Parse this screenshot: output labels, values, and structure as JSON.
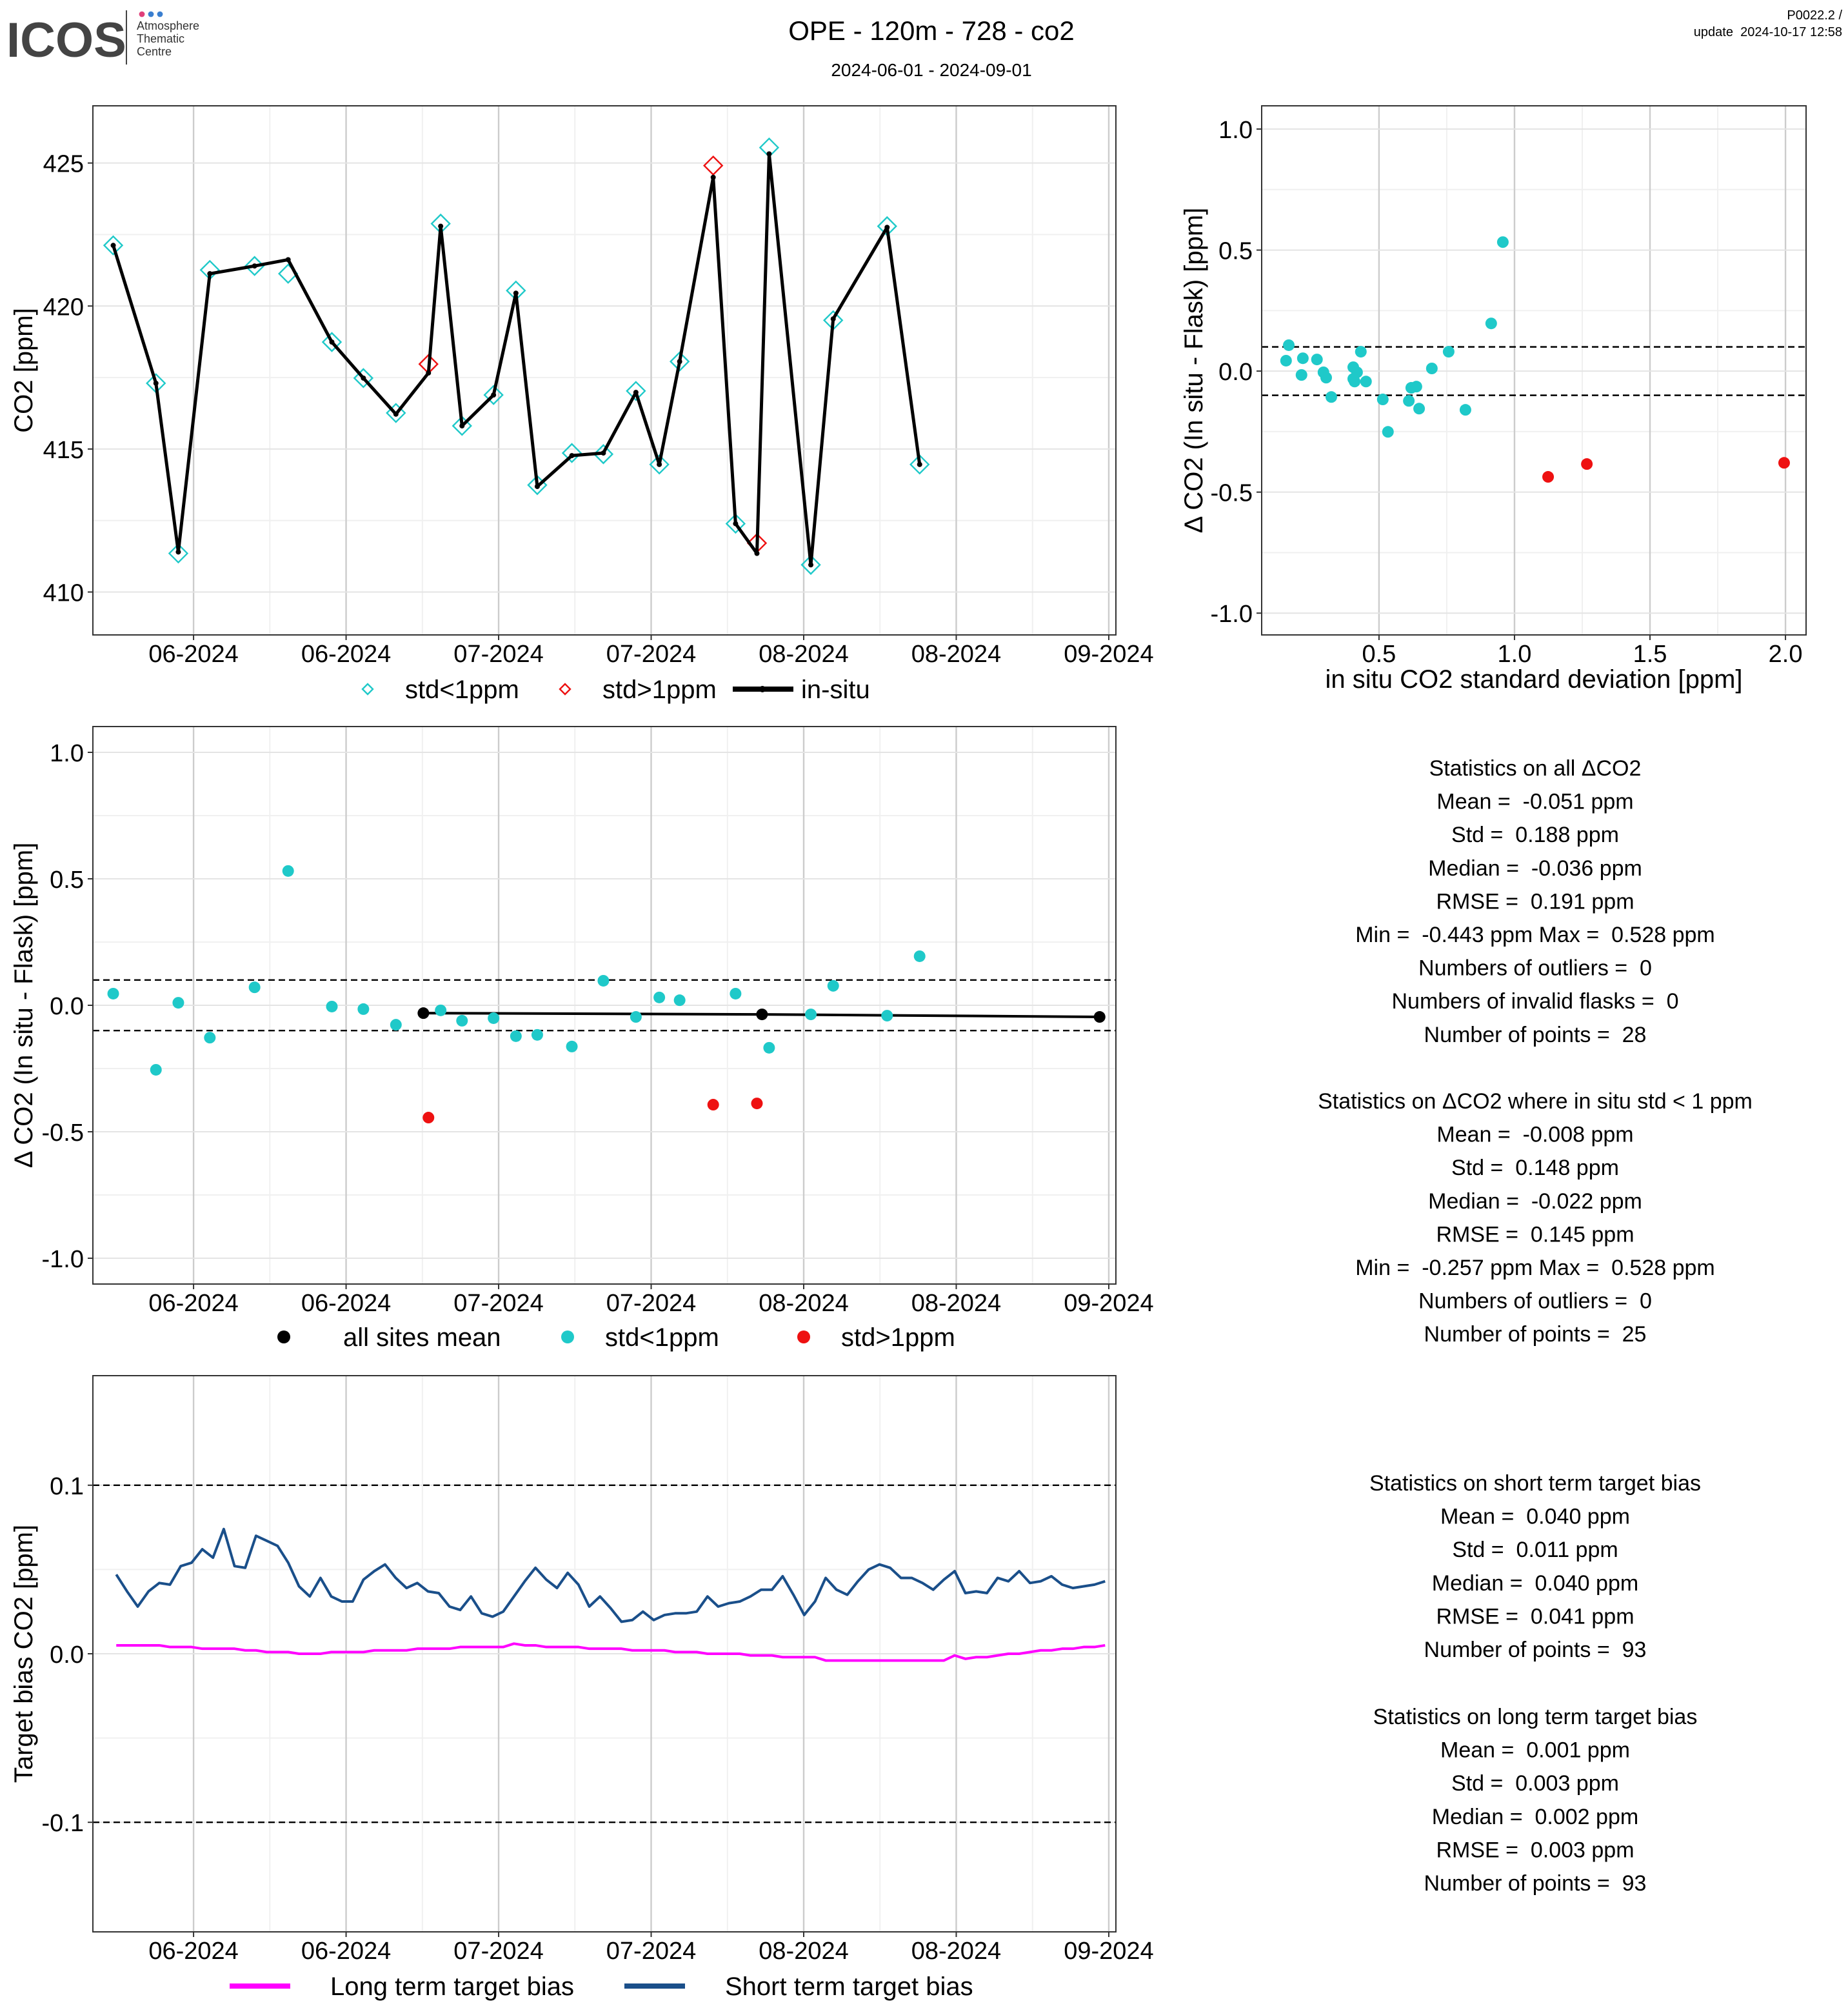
{
  "header": {
    "logo": "ICOS",
    "logo_sub": [
      "Atmosphere",
      "Thematic",
      "Centre"
    ],
    "title": "OPE - 120m - 728 - co2",
    "subtitle": "2024-06-01 - 2024-09-01",
    "version": "P0022.2 /",
    "update": "update  2024-10-17 12:58"
  },
  "chart_data": [
    {
      "type": "line",
      "ylabel": "CO2 [ppm]",
      "xlim": [
        -9.9,
        90.7
      ],
      "xticks": [
        {
          "value": 0,
          "label": "06-2024"
        },
        {
          "value": 15,
          "label": "06-2024"
        },
        {
          "value": 30,
          "label": "07-2024"
        },
        {
          "value": 45,
          "label": "07-2024"
        },
        {
          "value": 60,
          "label": "08-2024"
        },
        {
          "value": 75,
          "label": "08-2024"
        },
        {
          "value": 90,
          "label": "09-2024"
        }
      ],
      "ylim": [
        408.5,
        427
      ],
      "yticks": [
        410,
        415,
        420,
        425
      ],
      "grid": true,
      "series": [
        {
          "name": "std<1ppm",
          "color": "#1fc9c9",
          "style": "diamond",
          "x": [
            -7.9,
            -3.7,
            -1.5,
            1.6,
            6.0,
            9.3,
            13.6,
            16.7,
            19.9,
            24.3,
            26.4,
            29.5,
            31.7,
            33.8,
            37.2,
            40.3,
            43.5,
            45.8,
            47.8,
            53.3,
            56.6,
            60.7,
            62.9,
            68.2,
            71.4
          ],
          "values": [
            422.12,
            417.3,
            411.35,
            421.26,
            421.4,
            421.13,
            418.74,
            417.48,
            416.26,
            422.88,
            415.81,
            416.89,
            420.54,
            413.74,
            414.86,
            414.82,
            417.03,
            414.46,
            418.06,
            412.39,
            425.54,
            410.95,
            419.5,
            422.79,
            414.46
          ]
        },
        {
          "name": "std>1ppm",
          "color": "#ee1111",
          "style": "diamond",
          "x": [
            23.1,
            51.1,
            55.4
          ],
          "values": [
            417.97,
            424.91,
            411.71
          ]
        },
        {
          "name": "in-situ",
          "color": "#000000",
          "style": "line-dot",
          "x": [
            -7.9,
            -3.7,
            -1.5,
            1.6,
            6.0,
            9.3,
            13.6,
            16.7,
            19.9,
            23.1,
            24.3,
            26.4,
            29.5,
            31.7,
            33.8,
            37.2,
            40.3,
            43.5,
            45.8,
            47.8,
            51.1,
            53.3,
            55.4,
            56.6,
            60.7,
            62.9,
            68.2,
            71.4
          ],
          "values": [
            422.12,
            417.3,
            411.4,
            421.13,
            421.4,
            421.62,
            418.74,
            417.48,
            416.22,
            417.66,
            422.79,
            415.81,
            416.89,
            420.45,
            413.69,
            414.77,
            414.86,
            416.98,
            414.46,
            418.06,
            424.5,
            412.39,
            411.35,
            425.32,
            410.95,
            419.55,
            422.75,
            414.46
          ]
        }
      ]
    },
    {
      "type": "scatter",
      "xlabel": "in situ CO2 standard deviation [ppm]",
      "ylabel": "Δ CO2 (In situ - Flask) [ppm]",
      "xlim": [
        0.067,
        2.076
      ],
      "xticks": [
        0.5,
        {
          "value": 1,
          "label": "1.0"
        },
        1.5,
        {
          "value": 2,
          "label": "2.0"
        }
      ],
      "ylim": [
        -1.09,
        1.096
      ],
      "yticks": [
        {
          "value": -1,
          "label": "-1.0"
        },
        -0.5,
        {
          "value": 0,
          "label": "0.0"
        },
        0.5,
        {
          "value": 1,
          "label": "1.0"
        }
      ],
      "grid": true,
      "hlines": [
        0.1,
        -0.1
      ],
      "series": [
        {
          "color": "#1fc9c9",
          "style": "dot",
          "x": [
            0.157,
            0.167,
            0.214,
            0.219,
            0.271,
            0.295,
            0.305,
            0.324,
            0.405,
            0.405,
            0.41,
            0.419,
            0.433,
            0.452,
            0.514,
            0.533,
            0.61,
            0.619,
            0.638,
            0.648,
            0.695,
            0.757,
            0.819,
            0.914,
            0.957
          ],
          "values": [
            0.043,
            0.107,
            -0.016,
            0.053,
            0.048,
            -0.005,
            -0.027,
            -0.107,
            0.016,
            -0.032,
            -0.043,
            -0.005,
            0.08,
            -0.043,
            -0.117,
            -0.251,
            -0.123,
            -0.069,
            -0.064,
            -0.155,
            0.011,
            0.08,
            -0.16,
            0.197,
            0.533
          ]
        },
        {
          "color": "#ee1111",
          "style": "dot",
          "x": [
            1.124,
            1.267,
            1.995
          ],
          "values": [
            -0.437,
            -0.384,
            -0.379
          ]
        }
      ]
    },
    {
      "type": "scatter",
      "ylabel": "Δ CO2 (In situ - Flask) [ppm]",
      "xlim": [
        -9.9,
        90.7
      ],
      "xticks": [
        {
          "value": 0,
          "label": "06-2024"
        },
        {
          "value": 15,
          "label": "06-2024"
        },
        {
          "value": 30,
          "label": "07-2024"
        },
        {
          "value": 45,
          "label": "07-2024"
        },
        {
          "value": 60,
          "label": "08-2024"
        },
        {
          "value": 75,
          "label": "08-2024"
        },
        {
          "value": 90,
          "label": "09-2024"
        }
      ],
      "ylim": [
        -1.102,
        1.102
      ],
      "yticks": [
        {
          "value": -1,
          "label": "-1.0"
        },
        -0.5,
        {
          "value": 0,
          "label": "0.0"
        },
        0.5,
        {
          "value": 1,
          "label": "1.0"
        }
      ],
      "grid": true,
      "hlines": [
        0.1,
        -0.1
      ],
      "series": [
        {
          "name": "all sites mean",
          "color": "#000000",
          "style": "line-dot",
          "x": [
            22.6,
            55.9,
            89.1
          ],
          "values": [
            -0.031,
            -0.036,
            -0.046
          ]
        },
        {
          "name": "std<1ppm",
          "color": "#1fc9c9",
          "style": "dot",
          "x": [
            -7.9,
            -3.7,
            -1.5,
            1.6,
            6.0,
            9.3,
            13.6,
            16.7,
            19.9,
            24.3,
            26.4,
            29.5,
            31.7,
            33.8,
            37.2,
            40.3,
            43.5,
            45.8,
            47.8,
            53.3,
            56.6,
            60.7,
            62.9,
            68.2,
            71.4
          ],
          "values": [
            0.046,
            -0.255,
            0.01,
            -0.128,
            0.071,
            0.531,
            -0.005,
            -0.015,
            -0.077,
            -0.02,
            -0.061,
            -0.051,
            -0.122,
            -0.117,
            -0.163,
            0.097,
            -0.046,
            0.031,
            0.02,
            0.046,
            -0.168,
            -0.036,
            0.077,
            -0.041,
            0.194
          ]
        },
        {
          "name": "std>1ppm",
          "color": "#ee1111",
          "style": "dot",
          "x": [
            23.1,
            51.1,
            55.4
          ],
          "values": [
            -0.444,
            -0.393,
            -0.388
          ]
        }
      ]
    },
    {
      "type": "line",
      "ylabel": "Target bias CO2 [ppm]",
      "xlim": [
        -9.9,
        90.7
      ],
      "xticks": [
        {
          "value": 0,
          "label": "06-2024"
        },
        {
          "value": 15,
          "label": "06-2024"
        },
        {
          "value": 30,
          "label": "07-2024"
        },
        {
          "value": 45,
          "label": "07-2024"
        },
        {
          "value": 60,
          "label": "08-2024"
        },
        {
          "value": 75,
          "label": "08-2024"
        },
        {
          "value": 90,
          "label": "09-2024"
        }
      ],
      "ylim": [
        -0.165,
        0.165
      ],
      "yticks": [
        -0.1,
        {
          "value": 0,
          "label": "0.0"
        },
        0.1
      ],
      "grid": true,
      "hlines": [
        0.1,
        -0.1
      ],
      "x": [
        -7.6,
        -6.54,
        -5.49,
        -4.43,
        -3.37,
        -2.32,
        -1.26,
        -0.2,
        0.86,
        1.91,
        2.97,
        4.03,
        5.08,
        6.14,
        7.2,
        8.26,
        9.31,
        10.37,
        11.43,
        12.48,
        13.54,
        14.6,
        15.65,
        16.71,
        17.77,
        18.83,
        19.88,
        20.94,
        22.0,
        23.05,
        24.11,
        25.17,
        26.22,
        27.28,
        28.34,
        29.4,
        30.45,
        31.51,
        32.57,
        33.62,
        34.68,
        35.74,
        36.79,
        37.85,
        38.91,
        39.97,
        41.02,
        42.08,
        43.14,
        44.19,
        45.25,
        46.31,
        47.36,
        48.42,
        49.48,
        50.54,
        51.59,
        52.65,
        53.71,
        54.76,
        55.82,
        56.88,
        57.93,
        58.99,
        60.05,
        61.11,
        62.16,
        63.22,
        64.28,
        65.33,
        66.39,
        67.45,
        68.5,
        69.56,
        70.62,
        71.68,
        72.73,
        73.79,
        74.85,
        75.9,
        76.96,
        78.02,
        79.07,
        80.13,
        81.19,
        82.25,
        83.3,
        84.36,
        85.42,
        86.47,
        87.53,
        88.59,
        89.64
      ],
      "series": [
        {
          "name": "Long term target bias",
          "color": "#ff00ff",
          "style": "line",
          "values": [
            0.005,
            0.005,
            0.005,
            0.005,
            0.005,
            0.004,
            0.004,
            0.004,
            0.003,
            0.003,
            0.003,
            0.003,
            0.002,
            0.002,
            0.001,
            0.001,
            0.001,
            0.0,
            0.0,
            0.0,
            0.001,
            0.001,
            0.001,
            0.001,
            0.002,
            0.002,
            0.002,
            0.002,
            0.003,
            0.003,
            0.003,
            0.003,
            0.004,
            0.004,
            0.004,
            0.004,
            0.004,
            0.006,
            0.005,
            0.005,
            0.004,
            0.004,
            0.004,
            0.004,
            0.003,
            0.003,
            0.003,
            0.003,
            0.002,
            0.002,
            0.002,
            0.002,
            0.001,
            0.001,
            0.001,
            0.0,
            0.0,
            0.0,
            0.0,
            -0.001,
            -0.001,
            -0.001,
            -0.002,
            -0.002,
            -0.002,
            -0.002,
            -0.004,
            -0.004,
            -0.004,
            -0.004,
            -0.004,
            -0.004,
            -0.004,
            -0.004,
            -0.004,
            -0.004,
            -0.004,
            -0.004,
            -0.001,
            -0.003,
            -0.002,
            -0.002,
            -0.001,
            0.0,
            0.0,
            0.001,
            0.002,
            0.002,
            0.003,
            0.003,
            0.004,
            0.004,
            0.005
          ]
        },
        {
          "name": "Short term target bias",
          "color": "#1a4f8a",
          "style": "line",
          "values": [
            0.047,
            0.037,
            0.028,
            0.037,
            0.042,
            0.041,
            0.052,
            0.054,
            0.062,
            0.057,
            0.074,
            0.052,
            0.051,
            0.07,
            0.067,
            0.064,
            0.054,
            0.04,
            0.034,
            0.045,
            0.034,
            0.031,
            0.031,
            0.044,
            0.049,
            0.053,
            0.045,
            0.039,
            0.042,
            0.037,
            0.036,
            0.028,
            0.026,
            0.034,
            0.024,
            0.022,
            0.025,
            0.034,
            0.043,
            0.051,
            0.044,
            0.039,
            0.048,
            0.041,
            0.028,
            0.034,
            0.027,
            0.019,
            0.02,
            0.025,
            0.02,
            0.023,
            0.024,
            0.024,
            0.025,
            0.034,
            0.028,
            0.03,
            0.031,
            0.034,
            0.038,
            0.038,
            0.046,
            0.035,
            0.023,
            0.031,
            0.045,
            0.038,
            0.035,
            0.043,
            0.05,
            0.053,
            0.051,
            0.045,
            0.045,
            0.042,
            0.038,
            0.044,
            0.049,
            0.036,
            0.037,
            0.036,
            0.045,
            0.043,
            0.049,
            0.042,
            0.043,
            0.046,
            0.041,
            0.039,
            0.04,
            0.041,
            0.043
          ]
        }
      ]
    }
  ],
  "stats": [
    {
      "lines": [
        "Statistics on all ΔCO2",
        "Mean =  -0.051 ppm",
        "Std =  0.188 ppm",
        "Median =  -0.036 ppm",
        "RMSE =  0.191 ppm",
        "Min =  -0.443 ppm Max =  0.528 ppm",
        "Numbers of outliers =  0",
        "Numbers of invalid flasks =  0",
        "Number of points =  28"
      ]
    },
    {
      "lines": [
        "Statistics on ΔCO2 where in situ std < 1 ppm",
        "Mean =  -0.008 ppm",
        "Std =  0.148 ppm",
        "Median =  -0.022 ppm",
        "RMSE =  0.145 ppm",
        "Min =  -0.257 ppm Max =  0.528 ppm",
        "Numbers of outliers =  0",
        "Number of points =  25"
      ]
    },
    {
      "lines": [
        "Statistics on short term target bias",
        "Mean =  0.040 ppm",
        "Std =  0.011 ppm",
        "Median =  0.040 ppm",
        "RMSE =  0.041 ppm",
        "Number of points =  93"
      ]
    },
    {
      "lines": [
        "Statistics on long term target bias",
        "Mean =  0.001 ppm",
        "Std =  0.003 ppm",
        "Median =  0.002 ppm",
        "RMSE =  0.003 ppm",
        "Number of points =  93"
      ]
    }
  ]
}
